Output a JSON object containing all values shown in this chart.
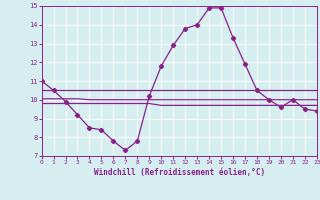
{
  "hours": [
    0,
    1,
    2,
    3,
    4,
    5,
    6,
    7,
    8,
    9,
    10,
    11,
    12,
    13,
    14,
    15,
    16,
    17,
    18,
    19,
    20,
    21,
    22,
    23
  ],
  "main_curve": [
    11,
    10.5,
    9.9,
    9.2,
    8.5,
    8.4,
    7.8,
    7.3,
    7.8,
    10.2,
    11.8,
    12.9,
    13.8,
    14.0,
    14.9,
    14.9,
    13.3,
    11.9,
    10.5,
    10.0,
    9.6,
    10.0,
    9.5,
    9.4
  ],
  "flat_line1": [
    10.5,
    10.5,
    10.5,
    10.5,
    10.5,
    10.5,
    10.5,
    10.5,
    10.5,
    10.5,
    10.5,
    10.5,
    10.5,
    10.5,
    10.5,
    10.5,
    10.5,
    10.5,
    10.5,
    10.5,
    10.5,
    10.5,
    10.5,
    10.5
  ],
  "flat_line2": [
    10.05,
    10.05,
    10.05,
    10.05,
    10.0,
    10.0,
    10.0,
    10.0,
    10.0,
    10.0,
    10.0,
    10.0,
    10.0,
    10.0,
    10.0,
    10.0,
    10.0,
    10.0,
    10.0,
    10.0,
    10.0,
    10.0,
    10.0,
    10.0
  ],
  "flat_line3": [
    9.8,
    9.8,
    9.8,
    9.8,
    9.8,
    9.8,
    9.8,
    9.8,
    9.8,
    9.8,
    9.7,
    9.7,
    9.7,
    9.7,
    9.7,
    9.7,
    9.7,
    9.7,
    9.7,
    9.7,
    9.7,
    9.7,
    9.7,
    9.7
  ],
  "ylim": [
    7,
    15
  ],
  "xlim": [
    0,
    23
  ],
  "yticks": [
    7,
    8,
    9,
    10,
    11,
    12,
    13,
    14,
    15
  ],
  "xticks": [
    0,
    1,
    2,
    3,
    4,
    5,
    6,
    7,
    8,
    9,
    10,
    11,
    12,
    13,
    14,
    15,
    16,
    17,
    18,
    19,
    20,
    21,
    22,
    23
  ],
  "line_color": "#882288",
  "bg_color": "#d6eef0",
  "grid_color": "#ffffff",
  "xlabel": "Windchill (Refroidissement éolien,°C)",
  "marker": "D",
  "markersize": 2.2,
  "linewidth": 0.9
}
